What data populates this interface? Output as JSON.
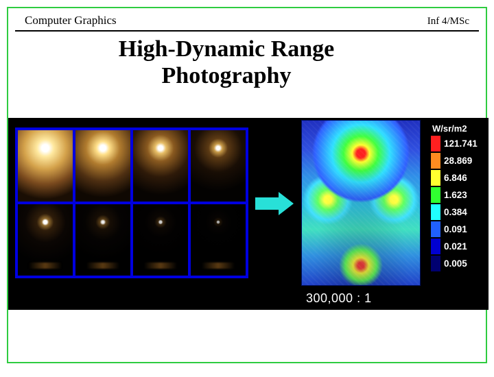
{
  "header": {
    "left": "Computer Graphics",
    "right": "Inf 4/MSc"
  },
  "title_line1": "High-Dynamic Range",
  "title_line2": "Photography",
  "figure": {
    "ratio_label": "300,000 : 1",
    "arrow_color": "#28e0d8",
    "exposure_border_color": "#0000e0",
    "legend": {
      "unit": "W/sr/m2",
      "entries": [
        {
          "color": "#ff2020",
          "value": "121.741"
        },
        {
          "color": "#ff8c20",
          "value": "28.869"
        },
        {
          "color": "#ffff30",
          "value": "6.846"
        },
        {
          "color": "#30ff30",
          "value": "1.623"
        },
        {
          "color": "#20ffff",
          "value": "0.384"
        },
        {
          "color": "#2060ff",
          "value": "0.091"
        },
        {
          "color": "#0000d0",
          "value": "0.021"
        },
        {
          "color": "#000070",
          "value": "0.005"
        }
      ]
    }
  }
}
